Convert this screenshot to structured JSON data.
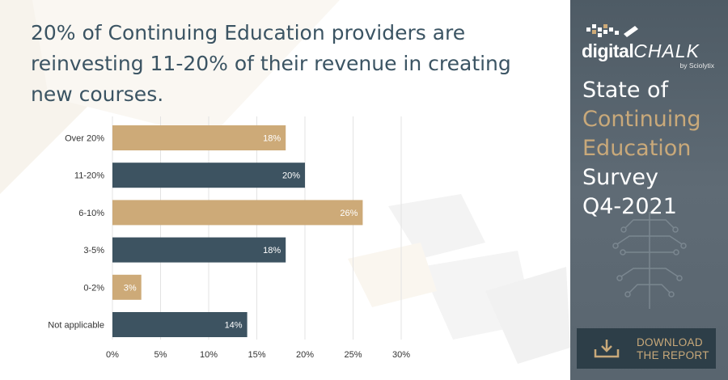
{
  "headline": "20% of Continuing Education providers are reinvesting 11-20% of their revenue in creating new courses.",
  "colors": {
    "tan": "#cdaa78",
    "slate": "#3d5361",
    "panel": "#56626c",
    "accent": "#c9a97a"
  },
  "chart_data": {
    "type": "bar",
    "orientation": "horizontal",
    "categories": [
      "Over 20%",
      "11-20%",
      "6-10%",
      "3-5%",
      "0-2%",
      "Not applicable"
    ],
    "values": [
      18,
      20,
      26,
      18,
      3,
      14
    ],
    "value_labels": [
      "18%",
      "20%",
      "26%",
      "18%",
      "3%",
      "14%"
    ],
    "bar_colors": [
      "#cdaa78",
      "#3d5361",
      "#cdaa78",
      "#3d5361",
      "#cdaa78",
      "#3d5361"
    ],
    "xlim": [
      0,
      30
    ],
    "xticks": [
      "0%",
      "5%",
      "10%",
      "15%",
      "20%",
      "25%",
      "30%"
    ],
    "grid": true,
    "xlabel": "",
    "ylabel": ""
  },
  "sidebar": {
    "logo_digital": "digital",
    "logo_chalk": "CHALK",
    "logo_sub": "by Sciolytix",
    "survey_lines": [
      "State of",
      "Continuing",
      "Education",
      "Survey",
      "Q4-2021"
    ],
    "cta_line1": "DOWNLOAD",
    "cta_line2": "THE REPORT"
  }
}
